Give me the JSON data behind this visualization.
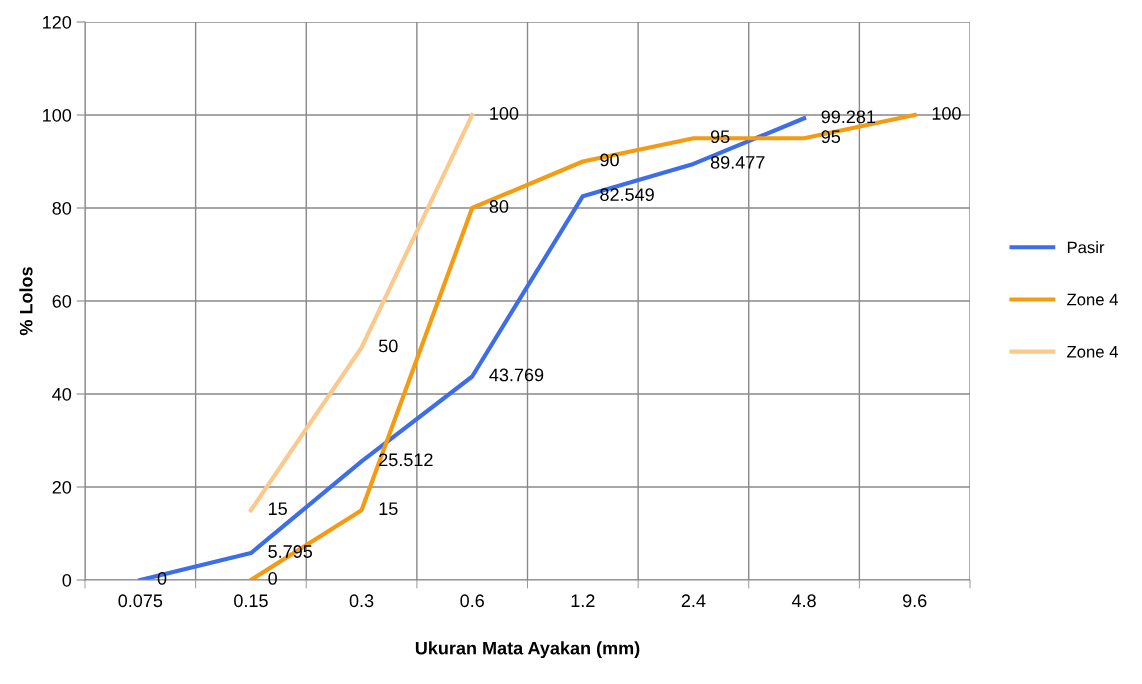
{
  "chart_data": {
    "type": "line",
    "xlabel": "Ukuran Mata Ayakan (mm)",
    "ylabel": "% Lolos",
    "categories": [
      "0.075",
      "0.15",
      "0.3",
      "0.6",
      "1.2",
      "2.4",
      "4.8",
      "9.6"
    ],
    "series": [
      {
        "name": "Pasir",
        "color": "#3d6ee8",
        "values": [
          0,
          5.795,
          25.512,
          43.769,
          82.549,
          89.477,
          99.281,
          null
        ]
      },
      {
        "name": "Zone 4",
        "color": "#f59b12",
        "values": [
          null,
          0,
          15,
          80,
          90,
          95,
          95,
          100
        ]
      },
      {
        "name": "Zone 4",
        "color": "#fbc98c",
        "values": [
          null,
          15,
          50,
          100,
          null,
          null,
          null,
          null
        ]
      }
    ],
    "ylim": [
      0,
      120
    ],
    "yticks": [
      0,
      20,
      40,
      60,
      80,
      100,
      120
    ],
    "grid": true,
    "legend": "right",
    "data_labels": true,
    "marker": "none"
  }
}
